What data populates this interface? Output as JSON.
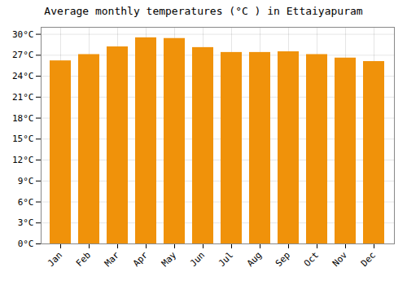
{
  "chart_data": {
    "type": "bar",
    "title": "Average monthly temperatures (°C ) in Ettaiyapuram",
    "categories": [
      "Jan",
      "Feb",
      "Mar",
      "Apr",
      "May",
      "Jun",
      "Jul",
      "Aug",
      "Sep",
      "Oct",
      "Nov",
      "Dec"
    ],
    "values": [
      26.2,
      27.1,
      28.2,
      29.5,
      29.4,
      28.1,
      27.4,
      27.4,
      27.5,
      27.1,
      26.6,
      26.1
    ],
    "color": "#F0920A",
    "ylim": [
      0,
      31
    ],
    "yticks": [
      {
        "value": 0,
        "label": "0°C"
      },
      {
        "value": 3,
        "label": "3°C"
      },
      {
        "value": 6,
        "label": "6°C"
      },
      {
        "value": 9,
        "label": "9°C"
      },
      {
        "value": 12,
        "label": "12°C"
      },
      {
        "value": 15,
        "label": "15°C"
      },
      {
        "value": 18,
        "label": "18°C"
      },
      {
        "value": 21,
        "label": "21°C"
      },
      {
        "value": 24,
        "label": "24°C"
      },
      {
        "value": 27,
        "label": "27°C"
      },
      {
        "value": 30,
        "label": "30°C"
      }
    ],
    "grid": true
  }
}
